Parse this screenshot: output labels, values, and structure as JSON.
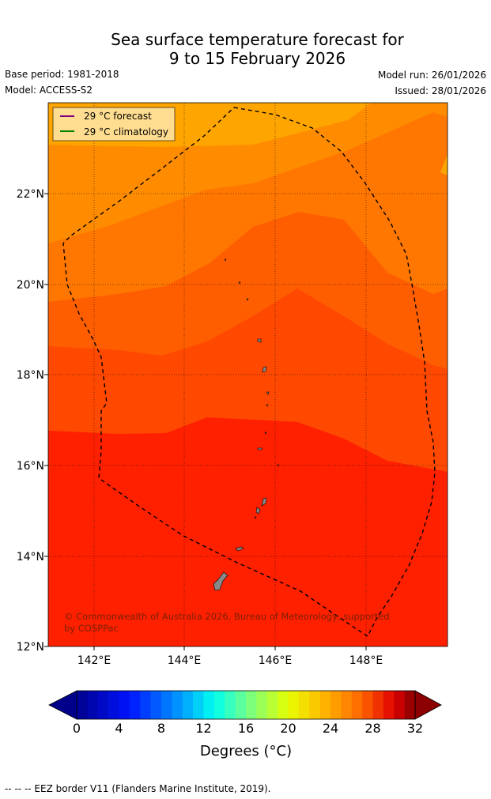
{
  "title": {
    "line1": "Sea surface temperature forecast for",
    "line2": "9 to 15 February 2026"
  },
  "meta": {
    "base_period": "Base period: 1981-2018",
    "model": "Model: ACCESS-S2",
    "model_run": "Model run: 26/01/2026",
    "issued": "Issued: 28/01/2026"
  },
  "legend": {
    "forecast_label": "29 °C  forecast",
    "climatology_label": "29 °C  climatology",
    "forecast_color": "#800080",
    "climatology_color": "#008000"
  },
  "map": {
    "lat_labels": [
      "22°N",
      "20°N",
      "18°N",
      "16°N",
      "14°N",
      "12°N"
    ],
    "lon_labels": [
      "142°E",
      "144°E",
      "146°E",
      "148°E"
    ],
    "copyright": "© Commonwealth of Australia 2026, Bureau of Meteorology, supported by COSPPac",
    "zone_colors": [
      "#ffa500",
      "#ff8c00",
      "#ff7700",
      "#ff5e00",
      "#ff4800",
      "#ff2000"
    ]
  },
  "colorbar": {
    "ticks": [
      "0",
      "4",
      "8",
      "12",
      "16",
      "20",
      "24",
      "28",
      "32"
    ],
    "label": "Degrees (°C)",
    "under_color": "#00008b",
    "over_color": "#8b0000"
  },
  "footnote": "--  --  -- EEZ border V11 (Flanders Marine Institute, 2019)."
}
